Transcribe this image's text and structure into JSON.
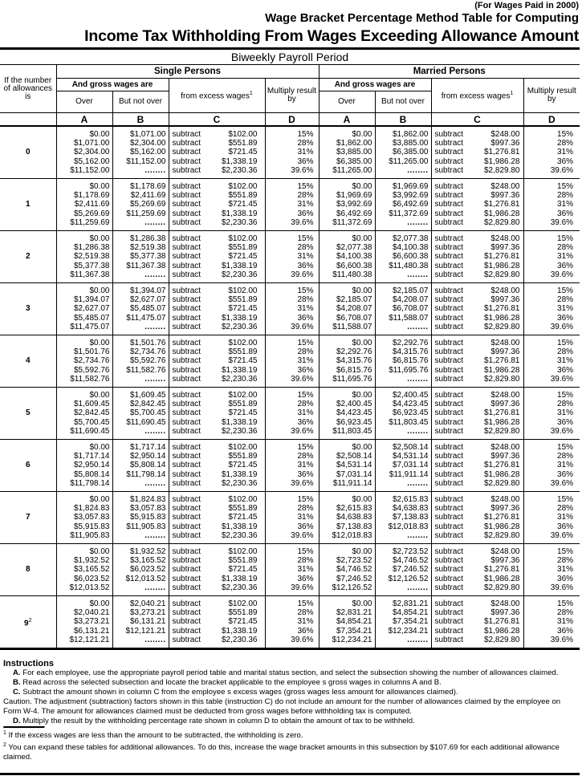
{
  "header": {
    "note": "(For Wages Paid in 2000)",
    "title_line1": "Wage Bracket Percentage Method Table for Computing",
    "title_line2": "Income Tax Withholding From Wages Exceeding Allowance Amount"
  },
  "table": {
    "period": "Biweekly Payroll Period",
    "allowance_header": "If the number of allowances is",
    "groups": [
      "Single Persons",
      "Married Persons"
    ],
    "gross_wages": "And gross wages are",
    "over": "Over",
    "but_not_over": "But not over",
    "from_excess": "from excess wages",
    "footnote_mark": "1",
    "multiply": "Multiply result by",
    "letters": [
      "A",
      "B",
      "C",
      "D"
    ],
    "subtract_word": "subtract",
    "dots": "........",
    "single_subtract": [
      "$102.00",
      "$551.89",
      "$721.45",
      "$1,338.19",
      "$2,230.36"
    ],
    "married_subtract": [
      "$248.00",
      "$997.36",
      "$1,276.81",
      "$1,986.28",
      "$2,829.80"
    ],
    "rates": [
      "15%",
      "28%",
      "31%",
      "36%",
      "39.6%"
    ],
    "rows": [
      {
        "allowances": "0",
        "sup": "",
        "single": [
          "$0.00",
          "$1,071.00",
          "$2,304.00",
          "$5,162.00",
          "$11,152.00"
        ],
        "married": [
          "$0.00",
          "$1,862.00",
          "$3,885.00",
          "$6,385.00",
          "$11,265.00"
        ]
      },
      {
        "allowances": "1",
        "sup": "",
        "single": [
          "$0.00",
          "$1,178.69",
          "$2,411.69",
          "$5,269.69",
          "$11,259.69"
        ],
        "married": [
          "$0.00",
          "$1,969.69",
          "$3,992.69",
          "$6,492.69",
          "$11,372.69"
        ]
      },
      {
        "allowances": "2",
        "sup": "",
        "single": [
          "$0.00",
          "$1,286.38",
          "$2,519.38",
          "$5,377.38",
          "$11,367.38"
        ],
        "married": [
          "$0.00",
          "$2,077.38",
          "$4,100.38",
          "$6,600.38",
          "$11,480.38"
        ]
      },
      {
        "allowances": "3",
        "sup": "",
        "single": [
          "$0.00",
          "$1,394.07",
          "$2,627.07",
          "$5,485.07",
          "$11,475.07"
        ],
        "married": [
          "$0.00",
          "$2,185.07",
          "$4,208.07",
          "$6,708.07",
          "$11,588.07"
        ]
      },
      {
        "allowances": "4",
        "sup": "",
        "single": [
          "$0.00",
          "$1,501.76",
          "$2,734.76",
          "$5,592.76",
          "$11,582.76"
        ],
        "married": [
          "$0.00",
          "$2,292.76",
          "$4,315.76",
          "$6,815.76",
          "$11,695.76"
        ]
      },
      {
        "allowances": "5",
        "sup": "",
        "single": [
          "$0.00",
          "$1,609.45",
          "$2,842.45",
          "$5,700.45",
          "$11,690.45"
        ],
        "married": [
          "$0.00",
          "$2,400.45",
          "$4,423.45",
          "$6,923.45",
          "$11,803.45"
        ]
      },
      {
        "allowances": "6",
        "sup": "",
        "single": [
          "$0.00",
          "$1,717.14",
          "$2,950.14",
          "$5,808.14",
          "$11,798.14"
        ],
        "married": [
          "$0.00",
          "$2,508.14",
          "$4,531.14",
          "$7,031.14",
          "$11,911.14"
        ]
      },
      {
        "allowances": "7",
        "sup": "",
        "single": [
          "$0.00",
          "$1,824.83",
          "$3,057.83",
          "$5,915.83",
          "$11,905.83"
        ],
        "married": [
          "$0.00",
          "$2,615.83",
          "$4,638.83",
          "$7,138.83",
          "$12,018.83"
        ]
      },
      {
        "allowances": "8",
        "sup": "",
        "single": [
          "$0.00",
          "$1,932.52",
          "$3,165.52",
          "$6,023.52",
          "$12,013.52"
        ],
        "married": [
          "$0.00",
          "$2,723.52",
          "$4,746.52",
          "$7,246.52",
          "$12,126.52"
        ]
      },
      {
        "allowances": "9",
        "sup": "2",
        "single": [
          "$0.00",
          "$2,040.21",
          "$3,273.21",
          "$6,131.21",
          "$12,121.21"
        ],
        "married": [
          "$0.00",
          "$2,831.21",
          "$4,854.21",
          "$7,354.21",
          "$12,234.21"
        ]
      }
    ]
  },
  "instructions": {
    "title": "Instructions",
    "a_label": "A.",
    "a_text": " For each employee, use the appropriate payroll period table and marital status section, and select the subsection showing the number of allowances claimed.",
    "b_label": "B.",
    "b_text": " Read across the selected subsection and locate the bracket applicable to the employee s gross wages in columns A and B.",
    "c_label": "C.",
    "c_text": " Subtract the amount shown in column C from the employee s excess wages (gross wages less amount for allowances claimed).",
    "caution": "Caution.  The adjustment (subtraction) factors shown in this table (instruction C) do not include an amount for the number of allowances claimed by the employee on Form W-4. The amount for allowances claimed must be deducted from gross wages before withholding tax is computed.",
    "d_label": "D.",
    "d_text": " Multiply the result by the withholding percentage rate shown in column D to obtain the amount of tax to be withheld.",
    "fn1_mark": "1",
    "fn1": " If the excess wages are less than the amount to be subtracted, the withholding is zero.",
    "fn2_mark": "2",
    "fn2": " You can expand these tables for additional allowances. To do this, increase the wage bracket amounts in this subsection by $107.69 for each additional allowance claimed."
  }
}
